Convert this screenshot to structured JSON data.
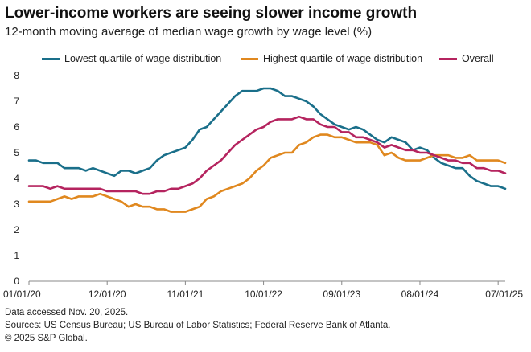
{
  "header": {
    "title": "Lower-income workers are seeing slower income growth",
    "subtitle": "12-month moving average of median wage growth by wage level (%)"
  },
  "footnotes": [
    "Data accessed Nov. 20, 2025.",
    "Sources: US Census Bureau; US Bureau of Labor Statistics; Federal Reserve Bank of Atlanta.",
    "© 2025 S&P Global."
  ],
  "chart_data": {
    "type": "line",
    "x_start": "2020-01",
    "x_end": "2025-07",
    "x_ticks": [
      "01/01/20",
      "12/01/20",
      "11/01/21",
      "10/01/22",
      "09/01/23",
      "08/01/24",
      "07/01/25"
    ],
    "y_ticks": [
      "0",
      "1",
      "2",
      "3",
      "4",
      "5",
      "6",
      "7",
      "8"
    ],
    "ylim": [
      0,
      8
    ],
    "grid": false,
    "legend_position": "top",
    "series": [
      {
        "name": "Lowest quartile of wage distribution",
        "color": "#1a6f8a",
        "values": [
          4.7,
          4.7,
          4.6,
          4.6,
          4.6,
          4.4,
          4.4,
          4.4,
          4.3,
          4.4,
          4.3,
          4.2,
          4.1,
          4.3,
          4.3,
          4.2,
          4.3,
          4.4,
          4.7,
          4.9,
          5.0,
          5.1,
          5.2,
          5.5,
          5.9,
          6.0,
          6.3,
          6.6,
          6.9,
          7.2,
          7.4,
          7.4,
          7.4,
          7.5,
          7.5,
          7.4,
          7.2,
          7.2,
          7.1,
          7.0,
          6.8,
          6.5,
          6.3,
          6.1,
          6.0,
          5.9,
          6.0,
          5.9,
          5.7,
          5.5,
          5.4,
          5.6,
          5.5,
          5.4,
          5.1,
          5.2,
          5.1,
          4.8,
          4.6,
          4.5,
          4.4,
          4.4,
          4.1,
          3.9,
          3.8,
          3.7,
          3.7,
          3.6
        ]
      },
      {
        "name": "Highest quartile of wage distribution",
        "color": "#e0881f",
        "values": [
          3.1,
          3.1,
          3.1,
          3.1,
          3.2,
          3.3,
          3.2,
          3.3,
          3.3,
          3.3,
          3.4,
          3.3,
          3.2,
          3.1,
          2.9,
          3.0,
          2.9,
          2.9,
          2.8,
          2.8,
          2.7,
          2.7,
          2.7,
          2.8,
          2.9,
          3.2,
          3.3,
          3.5,
          3.6,
          3.7,
          3.8,
          4.0,
          4.3,
          4.5,
          4.8,
          4.9,
          5.0,
          5.0,
          5.3,
          5.4,
          5.6,
          5.7,
          5.7,
          5.6,
          5.6,
          5.5,
          5.4,
          5.4,
          5.4,
          5.3,
          4.9,
          5.0,
          4.8,
          4.7,
          4.7,
          4.7,
          4.8,
          4.9,
          4.9,
          4.9,
          4.8,
          4.8,
          4.9,
          4.7,
          4.7,
          4.7,
          4.7,
          4.6
        ]
      },
      {
        "name": "Overall",
        "color": "#b5245f",
        "values": [
          3.7,
          3.7,
          3.7,
          3.6,
          3.7,
          3.6,
          3.6,
          3.6,
          3.6,
          3.6,
          3.6,
          3.5,
          3.5,
          3.5,
          3.5,
          3.5,
          3.4,
          3.4,
          3.5,
          3.5,
          3.6,
          3.6,
          3.7,
          3.8,
          4.0,
          4.3,
          4.5,
          4.7,
          5.0,
          5.3,
          5.5,
          5.7,
          5.9,
          6.0,
          6.2,
          6.3,
          6.3,
          6.3,
          6.4,
          6.3,
          6.3,
          6.1,
          6.0,
          6.0,
          5.8,
          5.8,
          5.6,
          5.6,
          5.5,
          5.4,
          5.2,
          5.3,
          5.2,
          5.1,
          5.1,
          5.0,
          5.0,
          4.9,
          4.8,
          4.7,
          4.7,
          4.6,
          4.6,
          4.4,
          4.4,
          4.3,
          4.3,
          4.2
        ]
      }
    ]
  }
}
